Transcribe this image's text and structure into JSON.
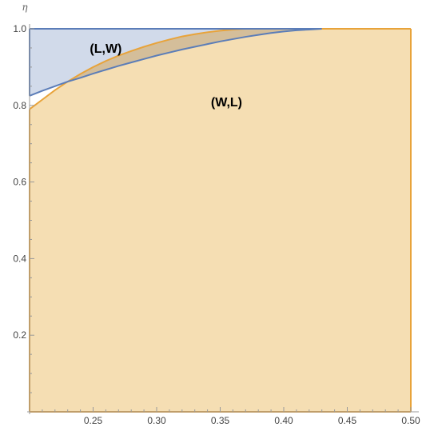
{
  "chart_data": {
    "type": "area",
    "title": "",
    "xlabel": "",
    "ylabel": "η",
    "xlim": [
      0.2,
      0.5
    ],
    "ylim": [
      0.0,
      1.0
    ],
    "grid": false,
    "x_ticks": [
      0.25,
      0.3,
      0.35,
      0.4,
      0.45,
      0.5
    ],
    "x_tick_labels": [
      "0.25",
      "0.30",
      "0.35",
      "0.40",
      "0.45",
      "0.50"
    ],
    "y_ticks": [
      0.2,
      0.4,
      0.6,
      0.8,
      1.0
    ],
    "y_tick_labels": [
      "0.2",
      "0.4",
      "0.6",
      "0.8",
      "1.0"
    ],
    "region_labels": [
      {
        "text": "(L,W)",
        "x": 0.26,
        "y": 0.95
      },
      {
        "text": "(W,L)",
        "x": 0.355,
        "y": 0.81
      }
    ],
    "series": [
      {
        "color": "#E8A33A",
        "fill": "#F5DEB3",
        "points": [
          [
            0.2,
            0.79
          ],
          [
            0.21,
            0.815
          ],
          [
            0.22,
            0.84
          ],
          [
            0.23,
            0.862
          ],
          [
            0.24,
            0.882
          ],
          [
            0.25,
            0.9
          ],
          [
            0.26,
            0.916
          ],
          [
            0.27,
            0.93
          ],
          [
            0.28,
            0.942
          ],
          [
            0.29,
            0.953
          ],
          [
            0.3,
            0.963
          ],
          [
            0.31,
            0.972
          ],
          [
            0.32,
            0.98
          ],
          [
            0.33,
            0.986
          ],
          [
            0.34,
            0.991
          ],
          [
            0.35,
            0.995
          ],
          [
            0.36,
            0.998
          ],
          [
            0.37,
            1.0
          ],
          [
            0.5,
            1.0
          ]
        ]
      },
      {
        "color": "#5B7DB8",
        "fill": "#C9D4E6",
        "points": [
          [
            0.2,
            0.825
          ],
          [
            0.21,
            0.838
          ],
          [
            0.22,
            0.85
          ],
          [
            0.23,
            0.862
          ],
          [
            0.24,
            0.872
          ],
          [
            0.25,
            0.883
          ],
          [
            0.26,
            0.893
          ],
          [
            0.27,
            0.903
          ],
          [
            0.28,
            0.912
          ],
          [
            0.29,
            0.921
          ],
          [
            0.3,
            0.93
          ],
          [
            0.31,
            0.938
          ],
          [
            0.32,
            0.946
          ],
          [
            0.33,
            0.953
          ],
          [
            0.34,
            0.96
          ],
          [
            0.35,
            0.967
          ],
          [
            0.36,
            0.973
          ],
          [
            0.37,
            0.979
          ],
          [
            0.38,
            0.984
          ],
          [
            0.39,
            0.989
          ],
          [
            0.4,
            0.993
          ],
          [
            0.41,
            0.996
          ],
          [
            0.42,
            0.998
          ],
          [
            0.43,
            1.0
          ],
          [
            0.5,
            1.0
          ]
        ]
      }
    ]
  }
}
